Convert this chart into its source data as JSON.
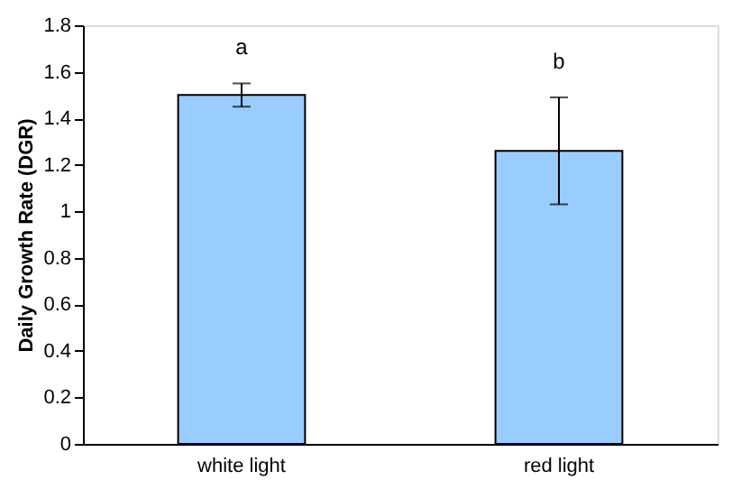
{
  "chart_data": {
    "type": "bar",
    "ylabel": "Daily Growth Rate (DGR)",
    "categories": [
      "white light",
      "red light"
    ],
    "values": [
      1.5,
      1.26
    ],
    "color": "#99ccff",
    "errors": [
      [
        1.45,
        1.55
      ],
      [
        1.03,
        1.49
      ]
    ],
    "annotations": [
      "a",
      "b"
    ],
    "ylim": [
      0,
      1.8
    ],
    "yticks": [
      0,
      0.2,
      0.4,
      0.6,
      0.8,
      1,
      1.2,
      1.4,
      1.6,
      1.8
    ],
    "grid": false
  }
}
